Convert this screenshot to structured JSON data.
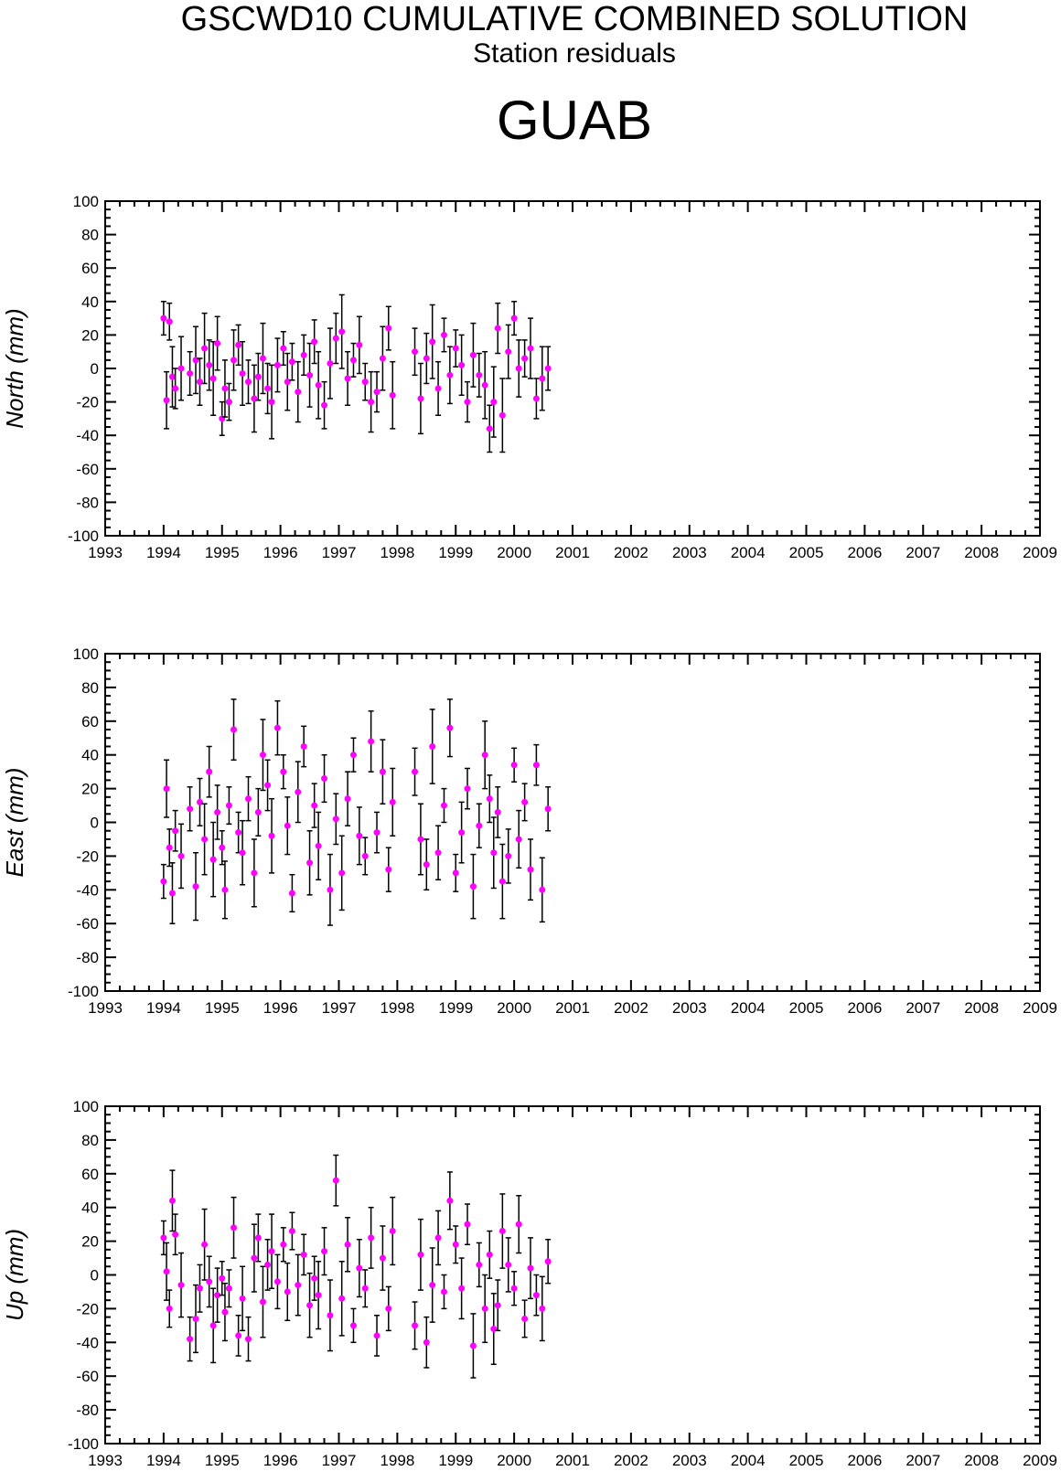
{
  "header": {
    "title": "GSCWD10 CUMULATIVE COMBINED SOLUTION",
    "subtitle": "Station residuals",
    "station": "GUAB"
  },
  "colors": {
    "point": "#ff00ff",
    "errorbar": "#000000",
    "frame": "#000000"
  },
  "chart_data": [
    {
      "type": "scatter",
      "title": "",
      "ylabel": "North (mm)",
      "xlabel": "",
      "xlim": [
        1993,
        2009
      ],
      "ylim": [
        -100,
        100
      ],
      "x_ticks": [
        "1993",
        "1994",
        "1995",
        "1996",
        "1997",
        "1998",
        "1999",
        "2000",
        "2001",
        "2002",
        "2003",
        "2004",
        "2005",
        "2006",
        "2007",
        "2008",
        "2009"
      ],
      "y_ticks": [
        "100",
        "80",
        "60",
        "40",
        "20",
        "0",
        "-20",
        "-40",
        "-60",
        "-80",
        "-100"
      ],
      "grid": false,
      "series": [
        {
          "x": [
            1994.0,
            1994.05,
            1994.1,
            1994.15,
            1994.2,
            1994.3,
            1994.45,
            1994.55,
            1994.62,
            1994.7,
            1994.78,
            1994.85,
            1994.92,
            1995.0,
            1995.05,
            1995.12,
            1995.2,
            1995.28,
            1995.35,
            1995.45,
            1995.55,
            1995.62,
            1995.7,
            1995.78,
            1995.85,
            1995.95,
            1996.05,
            1996.12,
            1996.2,
            1996.3,
            1996.4,
            1996.5,
            1996.58,
            1996.65,
            1996.75,
            1996.85,
            1996.95,
            1997.05,
            1997.15,
            1997.25,
            1997.35,
            1997.45,
            1997.55,
            1997.65,
            1997.75,
            1997.85,
            1997.92,
            1998.3,
            1998.4,
            1998.5,
            1998.6,
            1998.7,
            1998.8,
            1998.9,
            1999.0,
            1999.1,
            1999.2,
            1999.3,
            1999.4,
            1999.5,
            1999.58,
            1999.65,
            1999.72,
            1999.8,
            1999.9,
            2000.0,
            2000.08,
            2000.18,
            2000.28,
            2000.38,
            2000.48,
            2000.58
          ],
          "y": [
            30,
            -19,
            28,
            -5,
            -12,
            0,
            -3,
            5,
            -8,
            12,
            2,
            -6,
            15,
            -30,
            -12,
            -20,
            5,
            14,
            -3,
            -8,
            -18,
            -5,
            6,
            -12,
            -20,
            2,
            12,
            -8,
            4,
            -14,
            8,
            -4,
            16,
            -10,
            -22,
            3,
            18,
            22,
            -6,
            5,
            14,
            -8,
            -20,
            -14,
            6,
            24,
            -16,
            10,
            -18,
            6,
            16,
            -12,
            20,
            -4,
            12,
            2,
            -20,
            8,
            -4,
            -10,
            -36,
            -20,
            24,
            -28,
            10,
            30,
            0,
            6,
            12,
            -18,
            -6,
            0
          ]
        }
      ]
    },
    {
      "type": "scatter",
      "title": "",
      "ylabel": "East (mm)",
      "xlabel": "",
      "xlim": [
        1993,
        2009
      ],
      "ylim": [
        -100,
        100
      ],
      "x_ticks": [
        "1993",
        "1994",
        "1995",
        "1996",
        "1997",
        "1998",
        "1999",
        "2000",
        "2001",
        "2002",
        "2003",
        "2004",
        "2005",
        "2006",
        "2007",
        "2008",
        "2009"
      ],
      "y_ticks": [
        "100",
        "80",
        "60",
        "40",
        "20",
        "0",
        "-20",
        "-40",
        "-60",
        "-80",
        "-100"
      ],
      "grid": false,
      "series": [
        {
          "x": [
            1994.0,
            1994.05,
            1994.1,
            1994.15,
            1994.2,
            1994.3,
            1994.45,
            1994.55,
            1994.62,
            1994.7,
            1994.78,
            1994.85,
            1994.92,
            1995.0,
            1995.05,
            1995.12,
            1995.2,
            1995.28,
            1995.35,
            1995.45,
            1995.55,
            1995.62,
            1995.7,
            1995.78,
            1995.85,
            1995.95,
            1996.05,
            1996.12,
            1996.2,
            1996.3,
            1996.4,
            1996.5,
            1996.58,
            1996.65,
            1996.75,
            1996.85,
            1996.95,
            1997.05,
            1997.15,
            1997.25,
            1997.35,
            1997.45,
            1997.55,
            1997.65,
            1997.75,
            1997.85,
            1997.92,
            1998.3,
            1998.4,
            1998.5,
            1998.6,
            1998.7,
            1998.8,
            1998.9,
            1999.0,
            1999.1,
            1999.2,
            1999.3,
            1999.4,
            1999.5,
            1999.58,
            1999.65,
            1999.72,
            1999.8,
            1999.9,
            2000.0,
            2000.08,
            2000.18,
            2000.28,
            2000.38,
            2000.48,
            2000.58
          ],
          "y": [
            -35,
            20,
            -15,
            -42,
            -5,
            -20,
            8,
            -38,
            12,
            -10,
            30,
            -22,
            6,
            -15,
            -40,
            10,
            55,
            -6,
            -18,
            14,
            -30,
            6,
            40,
            22,
            -8,
            56,
            30,
            -2,
            -42,
            18,
            45,
            -24,
            10,
            -14,
            26,
            -40,
            2,
            -30,
            14,
            40,
            -8,
            -20,
            48,
            -6,
            30,
            -28,
            12,
            30,
            -10,
            -25,
            45,
            -18,
            10,
            56,
            -30,
            -6,
            20,
            -38,
            -2,
            40,
            14,
            -18,
            6,
            -35,
            -20,
            34,
            -10,
            12,
            -28,
            34,
            -40,
            8
          ]
        }
      ]
    },
    {
      "type": "scatter",
      "title": "",
      "ylabel": "Up (mm)",
      "xlabel": "",
      "xlim": [
        1993,
        2009
      ],
      "ylim": [
        -100,
        100
      ],
      "x_ticks": [
        "1993",
        "1994",
        "1995",
        "1996",
        "1997",
        "1998",
        "1999",
        "2000",
        "2001",
        "2002",
        "2003",
        "2004",
        "2005",
        "2006",
        "2007",
        "2008",
        "2009"
      ],
      "y_ticks": [
        "100",
        "80",
        "60",
        "40",
        "20",
        "0",
        "-20",
        "-40",
        "-60",
        "-80",
        "-100"
      ],
      "grid": false,
      "series": [
        {
          "x": [
            1994.0,
            1994.05,
            1994.1,
            1994.15,
            1994.2,
            1994.3,
            1994.45,
            1994.55,
            1994.62,
            1994.7,
            1994.78,
            1994.85,
            1994.92,
            1995.0,
            1995.05,
            1995.12,
            1995.2,
            1995.28,
            1995.35,
            1995.45,
            1995.55,
            1995.62,
            1995.7,
            1995.78,
            1995.85,
            1995.95,
            1996.05,
            1996.12,
            1996.2,
            1996.3,
            1996.4,
            1996.5,
            1996.58,
            1996.65,
            1996.75,
            1996.85,
            1996.95,
            1997.05,
            1997.15,
            1997.25,
            1997.35,
            1997.45,
            1997.55,
            1997.65,
            1997.75,
            1997.85,
            1997.92,
            1998.3,
            1998.4,
            1998.5,
            1998.6,
            1998.7,
            1998.8,
            1998.9,
            1999.0,
            1999.1,
            1999.2,
            1999.3,
            1999.4,
            1999.5,
            1999.58,
            1999.65,
            1999.72,
            1999.8,
            1999.9,
            2000.0,
            2000.08,
            2000.18,
            2000.28,
            2000.38,
            2000.48,
            2000.58
          ],
          "y": [
            22,
            2,
            -20,
            44,
            24,
            -6,
            -38,
            -26,
            -8,
            18,
            -4,
            -30,
            -12,
            -2,
            -22,
            -8,
            28,
            -36,
            -14,
            -38,
            10,
            22,
            -16,
            6,
            14,
            -4,
            18,
            -10,
            26,
            -6,
            12,
            -18,
            -2,
            -12,
            14,
            -24,
            56,
            -14,
            18,
            -30,
            4,
            -8,
            22,
            -36,
            10,
            -20,
            26,
            -30,
            12,
            -40,
            -6,
            22,
            -10,
            44,
            18,
            -8,
            30,
            -42,
            6,
            -20,
            12,
            -32,
            -18,
            26,
            6,
            -8,
            30,
            -26,
            4,
            -12,
            -20,
            8
          ]
        }
      ]
    }
  ]
}
